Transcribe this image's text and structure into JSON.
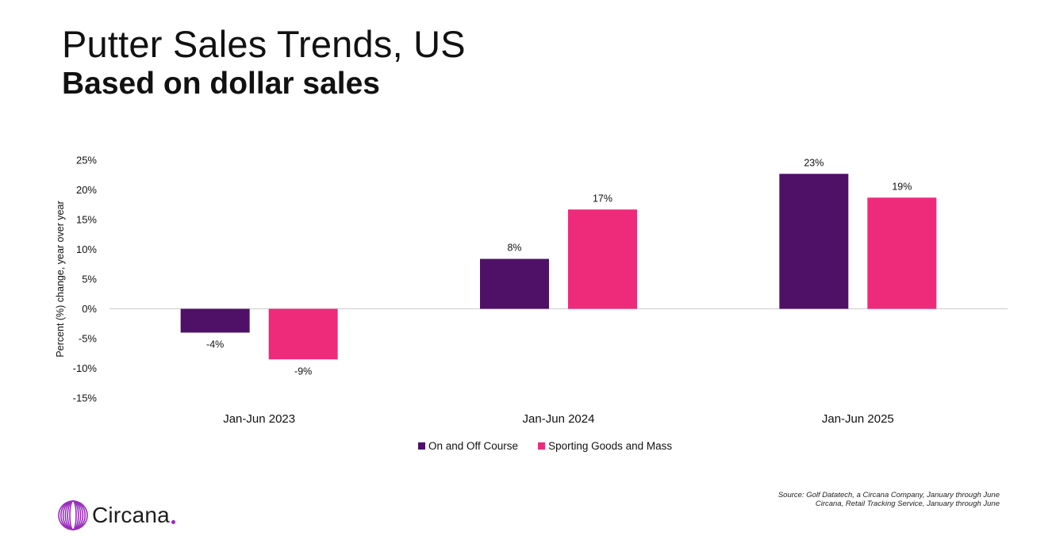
{
  "header": {
    "title": "Putter Sales Trends, US",
    "subtitle": "Based on dollar sales"
  },
  "chart_data": {
    "type": "bar",
    "categories": [
      "Jan-Jun 2023",
      "Jan-Jun 2024",
      "Jan-Jun 2025"
    ],
    "series": [
      {
        "name": "On and Off Course",
        "values": [
          -4,
          8,
          23
        ],
        "plotted": [
          -4.0,
          8.4,
          22.7
        ],
        "labels": [
          "-4%",
          "8%",
          "23%"
        ],
        "color": "#4f1168"
      },
      {
        "name": "Sporting Goods and Mass",
        "values": [
          -9,
          17,
          19
        ],
        "plotted": [
          -8.5,
          16.7,
          18.7
        ],
        "labels": [
          "-9%",
          "17%",
          "19%"
        ],
        "color": "#ee2a7b"
      }
    ],
    "ylabel": "Percent (%) change, year over year",
    "ylim": [
      -15,
      25
    ],
    "yticks": [
      25,
      20,
      15,
      10,
      5,
      0,
      -5,
      -10,
      -15
    ],
    "ytick_labels": [
      "25%",
      "20%",
      "15%",
      "10%",
      "5%",
      "0%",
      "-5%",
      "-10%",
      "-15%"
    ],
    "legend_position": "bottom-center",
    "grid": false
  },
  "source": {
    "line1": "Source: Golf Datatech, a Circana Company, January through June",
    "line2": "Circana, Retail Tracking Service, January through June"
  },
  "logo": {
    "text": "Circana",
    "ring_color": "#9b2bbf",
    "dot_color": "#a020d8"
  }
}
